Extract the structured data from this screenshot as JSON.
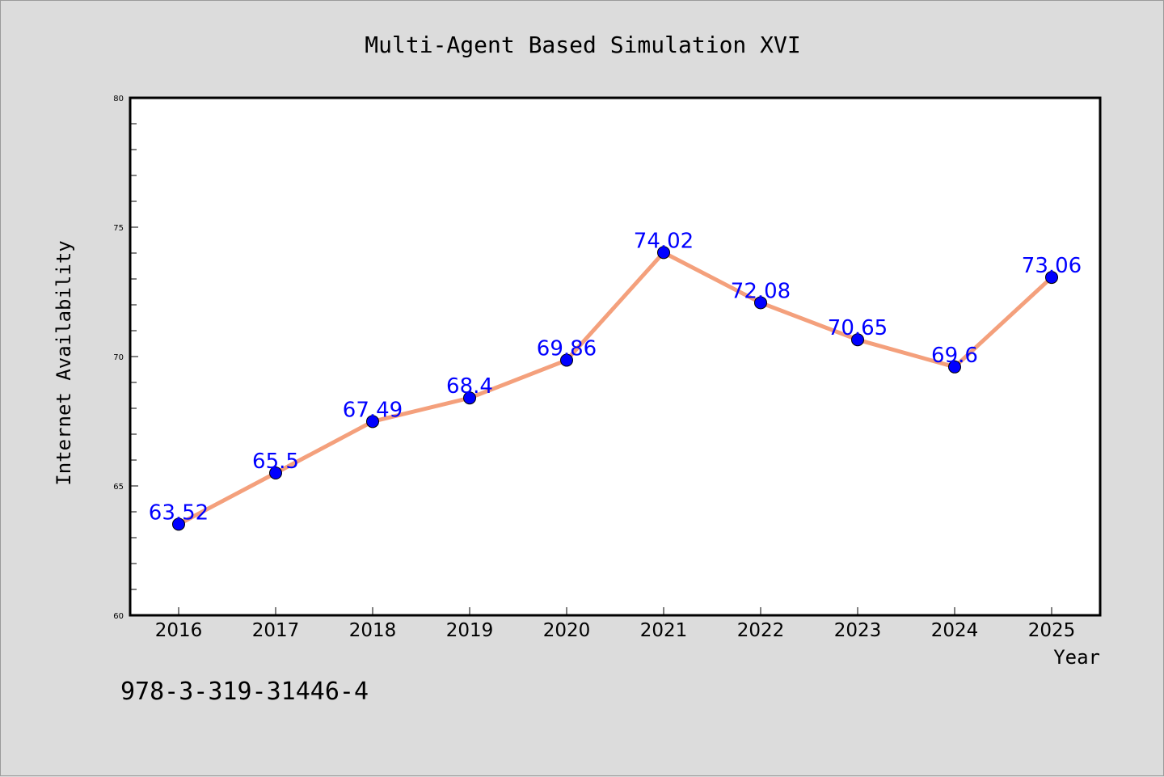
{
  "chart_data": {
    "type": "line",
    "title": "Multi-Agent Based Simulation XVI",
    "xlabel": "Year",
    "ylabel": "Internet Availability",
    "categories": [
      "2016",
      "2017",
      "2018",
      "2019",
      "2020",
      "2021",
      "2022",
      "2023",
      "2024",
      "2025"
    ],
    "series": [
      {
        "values": [
          63.52,
          65.5,
          67.49,
          68.4,
          69.86,
          74.02,
          72.08,
          70.65,
          69.6,
          73.06
        ],
        "labels": [
          "63.52",
          "65.5",
          "67.49",
          "68.4",
          "69.86",
          "74.02",
          "72.08",
          "70.65",
          "69.6",
          "73.06"
        ],
        "line_color": "#f4a07c",
        "marker_color": "#0000ff"
      }
    ],
    "ylim": [
      60,
      80
    ],
    "yticks": [
      "60",
      "65",
      "70",
      "75",
      "80"
    ],
    "grid": false,
    "legend": "none"
  },
  "footer_text": "978-3-319-31446-4",
  "colors": {
    "background": "#dcdcdc",
    "plot_area": "#ffffff",
    "label_text": "#0000ff"
  }
}
